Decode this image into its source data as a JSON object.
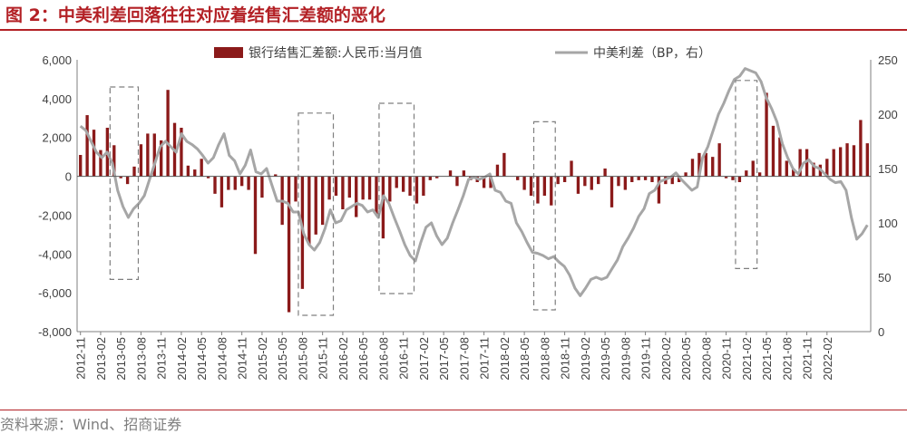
{
  "title": "图 2：中美利差回落往往对应着结售汇差额的恶化",
  "source": "资料来源：Wind、招商证券",
  "colors": {
    "bar": "#8b1a1a",
    "line": "#a6a6a6",
    "accent": "#b32025",
    "box": "#7f7f7f"
  },
  "chart_data": {
    "type": "bar+line",
    "x_labels": [
      "2012-11",
      "2013-02",
      "2013-05",
      "2013-08",
      "2013-11",
      "2014-02",
      "2014-05",
      "2014-08",
      "2014-11",
      "2015-02",
      "2015-05",
      "2015-08",
      "2015-11",
      "2016-02",
      "2016-05",
      "2016-08",
      "2016-11",
      "2017-02",
      "2017-05",
      "2017-08",
      "2017-11",
      "2018-02",
      "2018-05",
      "2018-08",
      "2018-11",
      "2019-02",
      "2019-05",
      "2019-08",
      "2019-11",
      "2020-02",
      "2020-05",
      "2020-08",
      "2020-11",
      "2021-02",
      "2021-05",
      "2021-08",
      "2021-11",
      "2022-02"
    ],
    "y_left": {
      "min": -8000,
      "max": 6000,
      "ticks": [
        "-8,000",
        "-6,000",
        "-4,000",
        "-2,000",
        "0",
        "2,000",
        "4,000",
        "6,000"
      ]
    },
    "y_right": {
      "min": 0,
      "max": 250,
      "ticks": [
        "0",
        "50",
        "100",
        "150",
        "200",
        "250"
      ]
    },
    "series": [
      {
        "name": "银行结售汇差额:人民币:当月值",
        "kind": "bar",
        "axis": "left",
        "values": [
          1100,
          3150,
          2400,
          1350,
          2500,
          1600,
          -100,
          -400,
          500,
          1650,
          2200,
          2200,
          1850,
          4450,
          2750,
          2500,
          550,
          350,
          900,
          -100,
          -900,
          -1600,
          -700,
          -700,
          -500,
          -700,
          -4000,
          -1100,
          0,
          100,
          -2500,
          -7000,
          -1300,
          -5800,
          -3500,
          -3000,
          -2500,
          -1200,
          -1000,
          -1700,
          -1100,
          -2100,
          -1200,
          -1200,
          -2000,
          -3200,
          -1300,
          -600,
          -800,
          -1000,
          -1400,
          -1000,
          -200,
          -100,
          0,
          300,
          -500,
          300,
          -200,
          -300,
          -600,
          -600,
          600,
          1200,
          0,
          -200,
          -700,
          -1000,
          -1400,
          -1000,
          -1500,
          -400,
          -300,
          800,
          -900,
          -500,
          -700,
          -400,
          400,
          -1600,
          -500,
          -700,
          -300,
          -200,
          -200,
          -300,
          -1400,
          -400,
          -400,
          -300,
          200,
          900,
          1200,
          1200,
          1000,
          1700,
          -100,
          -200,
          -300,
          300,
          800,
          200,
          4300,
          2600,
          2000,
          800,
          400,
          1400,
          1400,
          700,
          600,
          900,
          1400,
          1500,
          1700,
          1600,
          2900,
          1700
        ]
      },
      {
        "name": "中美利差（BP，右）",
        "kind": "line",
        "axis": "right",
        "values": [
          189,
          185,
          175,
          165,
          160,
          165,
          155,
          130,
          115,
          105,
          113,
          118,
          125,
          140,
          155,
          170,
          175,
          170,
          165,
          182,
          175,
          172,
          168,
          162,
          155,
          160,
          172,
          182,
          162,
          157,
          145,
          153,
          167,
          147,
          145,
          150,
          135,
          120,
          120,
          118,
          110,
          110,
          90,
          80,
          75,
          82,
          95,
          112,
          100,
          102,
          112,
          115,
          118,
          116,
          110,
          112,
          105,
          125,
          118,
          105,
          93,
          80,
          70,
          65,
          82,
          96,
          100,
          88,
          80,
          86,
          100,
          112,
          125,
          140,
          142,
          140,
          142,
          145,
          130,
          128,
          120,
          118,
          100,
          92,
          82,
          73,
          72,
          70,
          67,
          69,
          64,
          60,
          52,
          40,
          33,
          40,
          48,
          50,
          48,
          50,
          58,
          66,
          78,
          86,
          95,
          106,
          113,
          127,
          130,
          138,
          140,
          142,
          146,
          140,
          135,
          130,
          133,
          160,
          170,
          185,
          200,
          210,
          222,
          232,
          235,
          242,
          240,
          238,
          230,
          215,
          205,
          193,
          173,
          160,
          150,
          145,
          155,
          158,
          152,
          150,
          145,
          140,
          137,
          138,
          130,
          105,
          85,
          90,
          98
        ]
      }
    ],
    "highlight_boxes": [
      {
        "from": "2013-04",
        "to": "2013-07",
        "y_top": 225,
        "y_bottom": 48
      },
      {
        "from": "2015-08",
        "to": "2015-12",
        "y_top": 201,
        "y_bottom": 15
      },
      {
        "from": "2016-08",
        "to": "2016-12",
        "y_top": 210,
        "y_bottom": 35
      },
      {
        "from": "2018-07",
        "to": "2018-09",
        "y_top": 193,
        "y_bottom": 20
      },
      {
        "from": "2021-01",
        "to": "2021-03",
        "y_top": 231,
        "y_bottom": 58
      }
    ]
  }
}
